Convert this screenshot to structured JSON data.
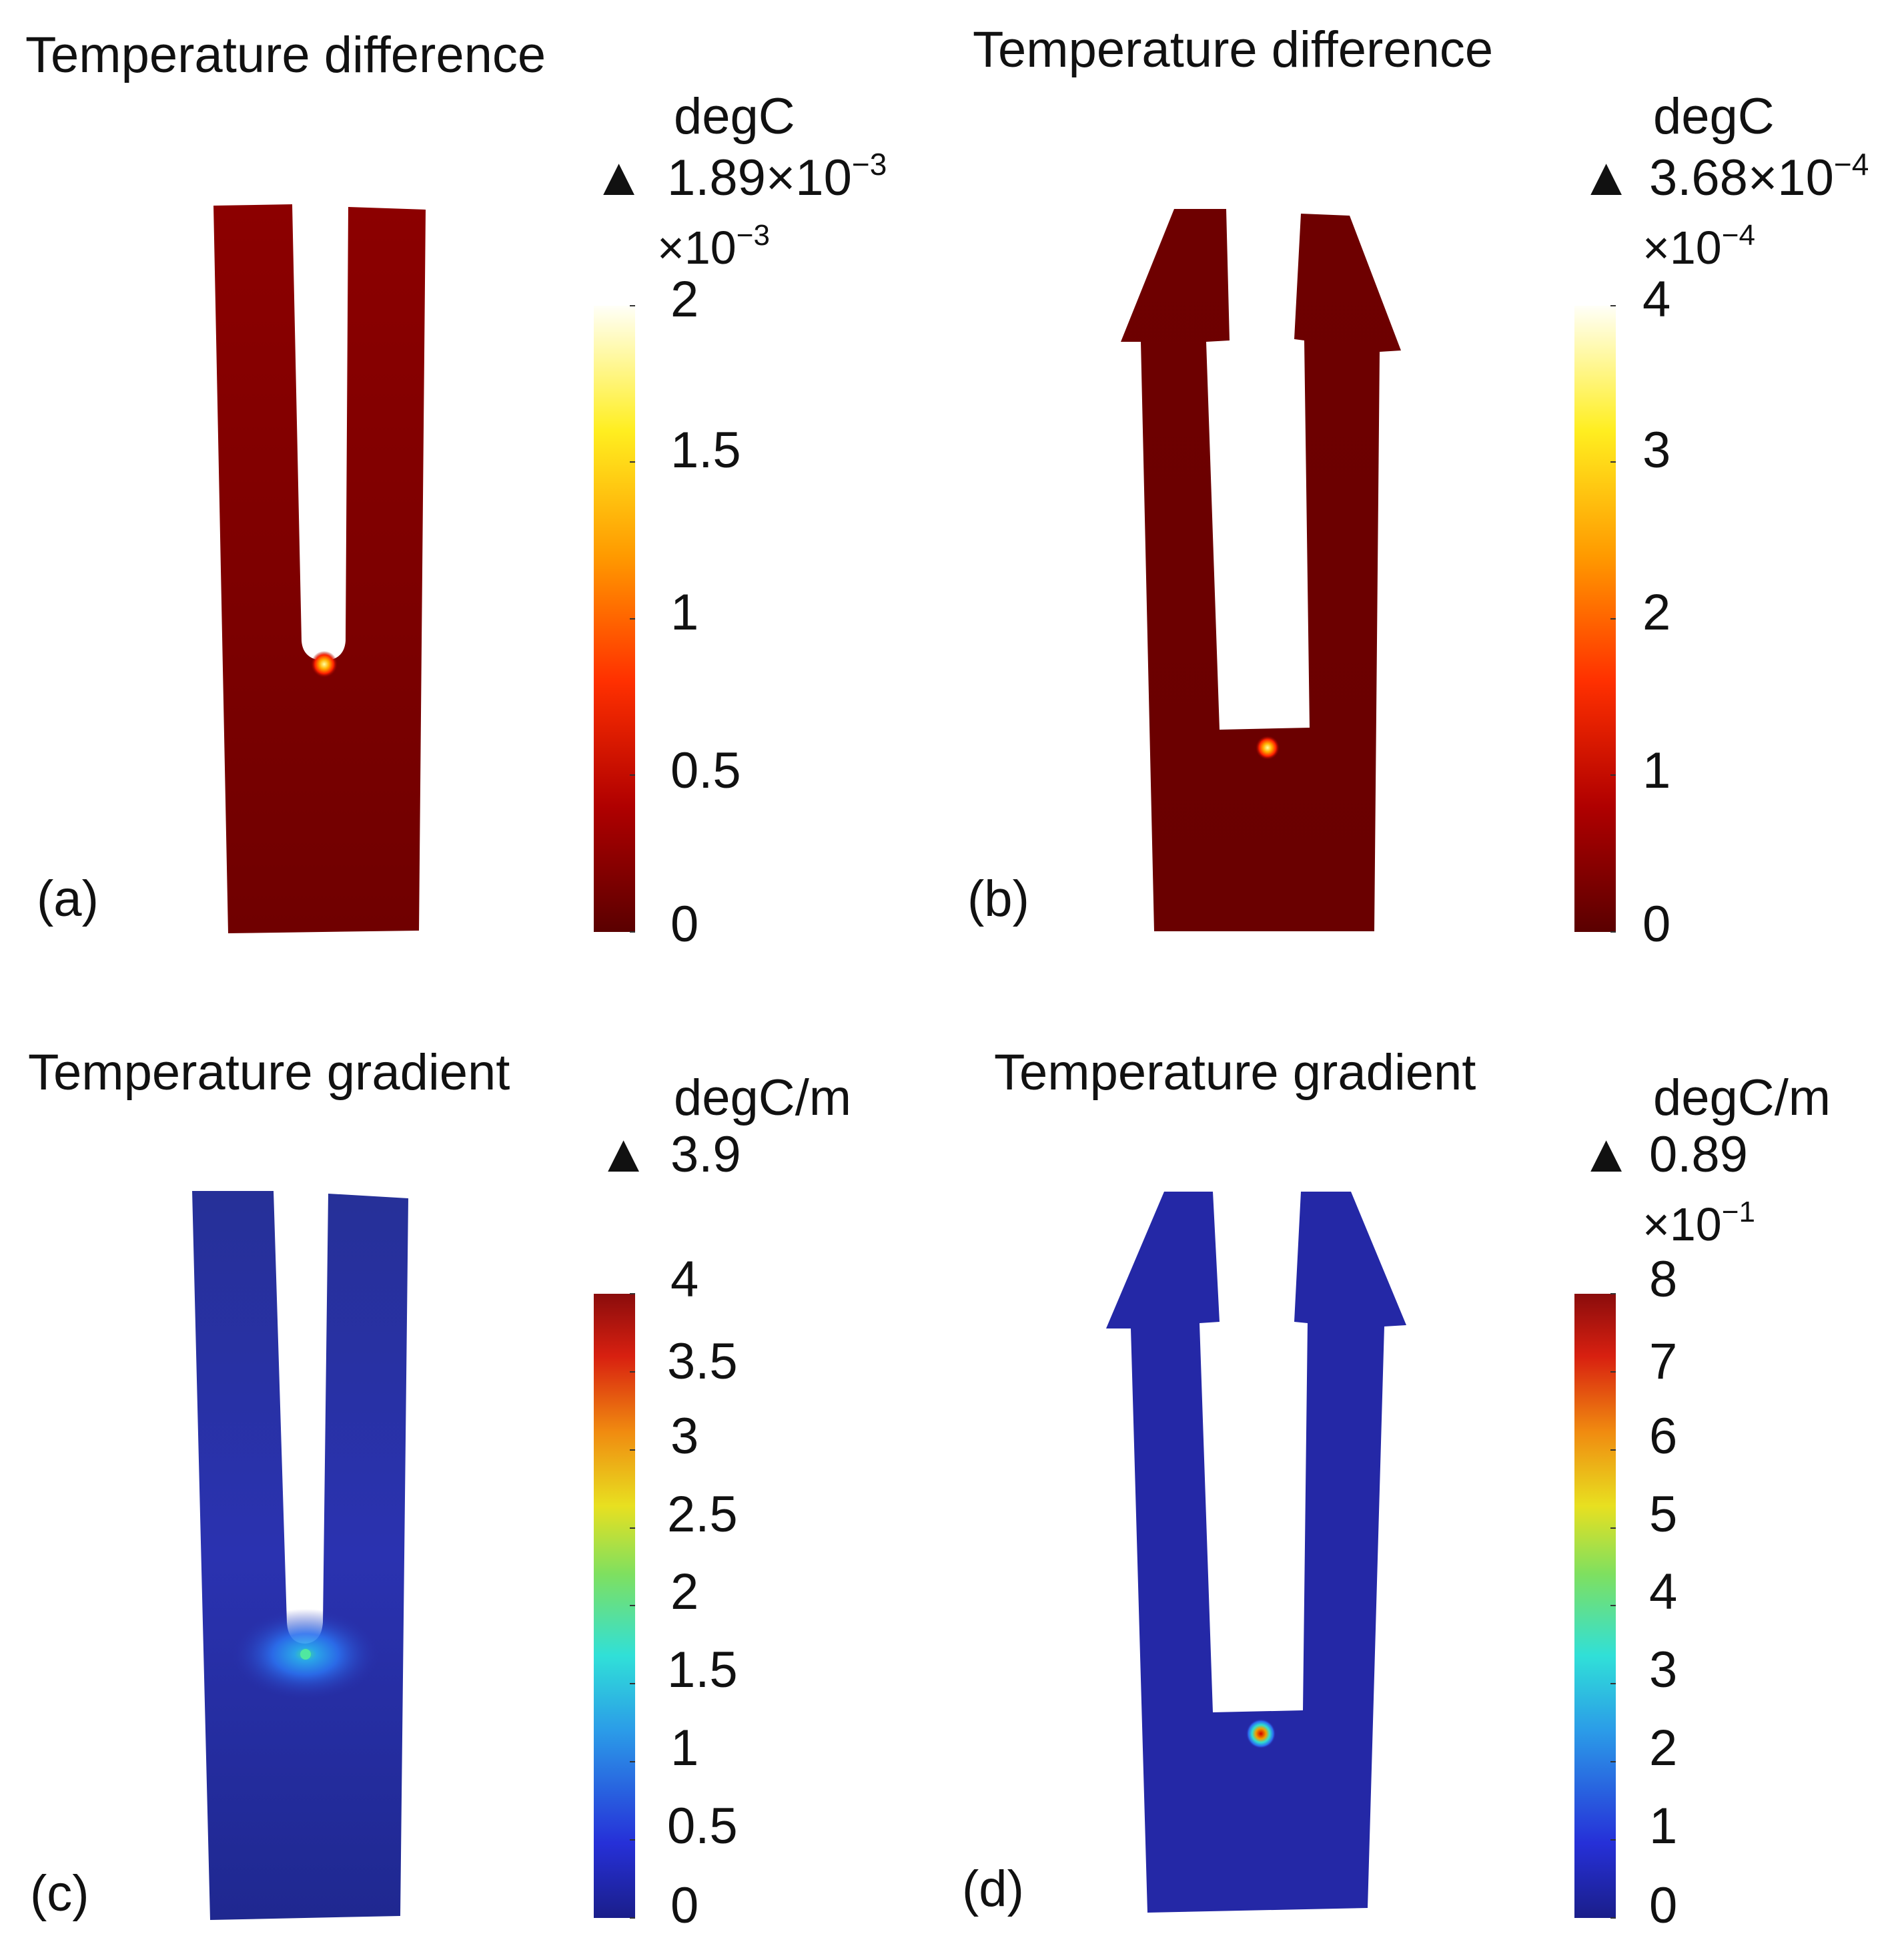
{
  "panels": [
    {
      "id": "a",
      "label": "(a)",
      "title": "Temperature difference",
      "unit": "degC",
      "max_marker": "▲",
      "max_value": "1.89×10",
      "max_exp": "−3",
      "multiplier": "×10",
      "multiplier_exp": "−3",
      "ticks": [
        "2",
        "1.5",
        "1",
        "0.5",
        "0"
      ],
      "colormap": "heat",
      "geometry": "notched-bar",
      "hotspot": "notch tip"
    },
    {
      "id": "b",
      "label": "(b)",
      "title": "Temperature difference",
      "unit": "degC",
      "max_marker": "▲",
      "max_value": "3.68×10",
      "max_exp": "−4",
      "multiplier": "×10",
      "multiplier_exp": "−4",
      "ticks": [
        "4",
        "3",
        "2",
        "1",
        "0"
      ],
      "colormap": "heat",
      "geometry": "fork-with-arrow-tips",
      "hotspot": "slot bottom"
    },
    {
      "id": "c",
      "label": "(c)",
      "title": "Temperature gradient",
      "unit": "degC/m",
      "max_marker": "▲",
      "max_value": "3.9",
      "max_exp": "",
      "multiplier": "",
      "multiplier_exp": "",
      "ticks": [
        "4",
        "3.5",
        "3",
        "2.5",
        "2",
        "1.5",
        "1",
        "0.5",
        "0"
      ],
      "colormap": "jet",
      "geometry": "notched-bar",
      "hotspot": "notch tip"
    },
    {
      "id": "d",
      "label": "(d)",
      "title": "Temperature gradient",
      "unit": "degC/m",
      "max_marker": "▲",
      "max_value": "0.89",
      "max_exp": "",
      "multiplier": "×10",
      "multiplier_exp": "−1",
      "ticks": [
        "8",
        "7",
        "6",
        "5",
        "4",
        "3",
        "2",
        "1",
        "0"
      ],
      "colormap": "jet",
      "geometry": "fork-with-arrow-tips",
      "hotspot": "slot bottom"
    }
  ],
  "colors": {
    "heat_body": "#8a0000",
    "heat_body_dark": "#6e0000",
    "jet_body": "#2a30a8",
    "jet_body_dark": "#1e248e",
    "background": "#ffffff"
  }
}
